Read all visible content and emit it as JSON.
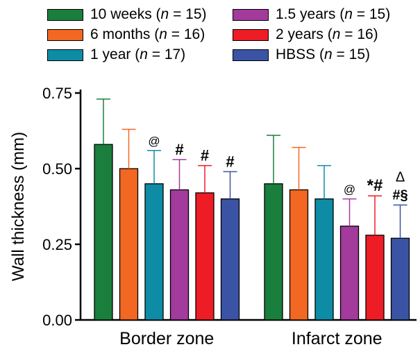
{
  "legend": {
    "items": [
      {
        "label_pre": "10 weeks (",
        "label_var": "n",
        "label_post": " = 15)",
        "color": "#1a7f3c"
      },
      {
        "label_pre": "6 months (",
        "label_var": "n",
        "label_post": " = 16)",
        "color": "#f26722"
      },
      {
        "label_pre": "1 year (",
        "label_var": "n",
        "label_post": " = 17)",
        "color": "#0e8ca6"
      },
      {
        "label_pre": "1.5 years (",
        "label_var": "n",
        "label_post": " = 15)",
        "color": "#a23b9c"
      },
      {
        "label_pre": "2 years (",
        "label_var": "n",
        "label_post": " = 16)",
        "color": "#ee1c25"
      },
      {
        "label_pre": "HBSS (",
        "label_var": "n",
        "label_post": " = 15)",
        "color": "#3a53a4"
      }
    ]
  },
  "chart_data": {
    "type": "bar",
    "ylabel": "Wall thickness (mm)",
    "ylim": [
      0,
      0.75
    ],
    "yticks": [
      "0.00",
      "0.25",
      "0.50",
      "0.75"
    ],
    "categories": [
      "Border zone",
      "Infarct zone"
    ],
    "series": [
      {
        "name": "10 weeks (n = 15)",
        "color": "#1a7f3c",
        "values": [
          0.58,
          0.45
        ],
        "errors": [
          0.15,
          0.16
        ],
        "annotations": [
          "",
          ""
        ]
      },
      {
        "name": "6 months (n = 16)",
        "color": "#f26722",
        "values": [
          0.5,
          0.43
        ],
        "errors": [
          0.13,
          0.14
        ],
        "annotations": [
          "",
          ""
        ]
      },
      {
        "name": "1 year (n = 17)",
        "color": "#0e8ca6",
        "values": [
          0.45,
          0.4
        ],
        "errors": [
          0.11,
          0.11
        ],
        "annotations": [
          "@",
          ""
        ]
      },
      {
        "name": "1.5 years (n = 15)",
        "color": "#a23b9c",
        "values": [
          0.43,
          0.31
        ],
        "errors": [
          0.1,
          0.09
        ],
        "annotations": [
          "#",
          "@"
        ]
      },
      {
        "name": "2 years (n = 16)",
        "color": "#ee1c25",
        "values": [
          0.42,
          0.28
        ],
        "errors": [
          0.09,
          0.13
        ],
        "annotations": [
          "#",
          "*#"
        ]
      },
      {
        "name": "HBSS (n = 15)",
        "color": "#3a53a4",
        "values": [
          0.4,
          0.27
        ],
        "errors": [
          0.09,
          0.11
        ],
        "annotations": [
          "#",
          "Δ #§"
        ]
      }
    ]
  }
}
